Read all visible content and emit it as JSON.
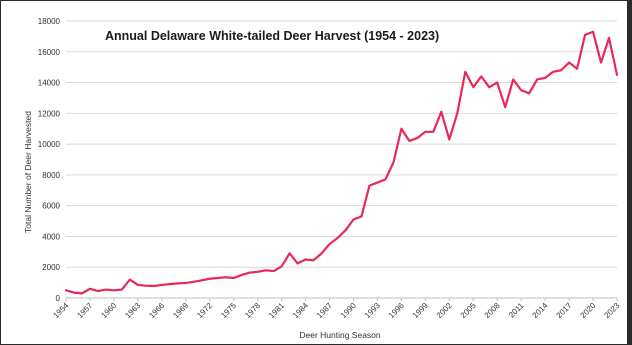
{
  "chart_data": {
    "type": "line",
    "title": "Annual Delaware White-tailed Deer Harvest (1954 - 2023)",
    "xlabel": "Deer Hunting Season",
    "ylabel": "Total Number of Deer Harvested",
    "ylim": [
      0,
      18000
    ],
    "yticks": [
      0,
      2000,
      4000,
      6000,
      8000,
      10000,
      12000,
      14000,
      16000,
      18000
    ],
    "xticks": [
      1954,
      1957,
      1960,
      1963,
      1966,
      1969,
      1972,
      1975,
      1978,
      1981,
      1984,
      1987,
      1990,
      1993,
      1996,
      1999,
      2002,
      2005,
      2008,
      2011,
      2014,
      2017,
      2020,
      2023
    ],
    "grid": true,
    "line_color": "#e8285a",
    "series": [
      {
        "x": [
          1954,
          1955,
          1956,
          1957,
          1958,
          1959,
          1960,
          1961,
          1962,
          1963,
          1964,
          1965,
          1966,
          1967,
          1968,
          1969,
          1970,
          1971,
          1972,
          1973,
          1974,
          1975,
          1976,
          1977,
          1978,
          1979,
          1980,
          1981,
          1982,
          1983,
          1984,
          1985,
          1986,
          1987,
          1988,
          1989,
          1990,
          1991,
          1992,
          1993,
          1994,
          1995,
          1996,
          1997,
          1998,
          1999,
          2000,
          2001,
          2002,
          2003,
          2004,
          2005,
          2006,
          2007,
          2008,
          2009,
          2010,
          2011,
          2012,
          2013,
          2014,
          2015,
          2016,
          2017,
          2018,
          2019,
          2020,
          2021,
          2022,
          2023
        ],
        "values": [
          500,
          350,
          300,
          600,
          450,
          550,
          500,
          550,
          1200,
          850,
          800,
          780,
          850,
          900,
          950,
          980,
          1050,
          1150,
          1250,
          1300,
          1350,
          1300,
          1500,
          1650,
          1700,
          1800,
          1750,
          2050,
          2900,
          2250,
          2500,
          2450,
          2900,
          3500,
          3900,
          4400,
          5100,
          5300,
          7300,
          7500,
          7700,
          8800,
          11000,
          10200,
          10400,
          10800,
          10800,
          12100,
          10300,
          12000,
          14700,
          13700,
          14400,
          13700,
          14000,
          12400,
          14200,
          13500,
          13300,
          14200,
          14300,
          14700,
          14800,
          15300,
          14900,
          17100,
          17300,
          15300,
          16900,
          14500
        ]
      }
    ]
  }
}
